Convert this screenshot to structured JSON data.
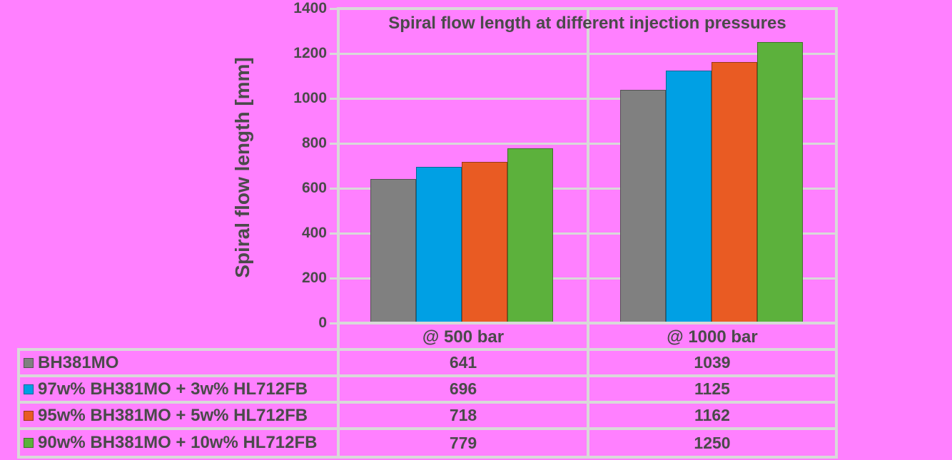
{
  "chart_data": {
    "type": "bar",
    "title": "Spiral flow length at different injection pressures",
    "ylabel": "Spiral flow length [mm]",
    "xlabel": "",
    "ylim": [
      0,
      1400
    ],
    "yticks": [
      0,
      200,
      400,
      600,
      800,
      1000,
      1200,
      1400
    ],
    "grid": true,
    "legend_position": "table-left",
    "categories": [
      "@ 500 bar",
      "@ 1000 bar"
    ],
    "series": [
      {
        "name": "BH381MO",
        "color": "#808080",
        "values": [
          641,
          1039
        ]
      },
      {
        "name": "97w% BH381MO + 3w% HL712FB",
        "color": "#00A0E4",
        "values": [
          696,
          1125
        ]
      },
      {
        "name": "95w% BH381MO + 5w% HL712FB",
        "color": "#E95B23",
        "values": [
          718,
          1162
        ]
      },
      {
        "name": "90w% BH381MO + 10w% HL712FB",
        "color": "#5CB13C",
        "values": [
          779,
          1250
        ]
      }
    ],
    "colors": {
      "background": "#FF80FF",
      "grid": "#D9D9D9",
      "text": "#4A4A4A"
    }
  }
}
